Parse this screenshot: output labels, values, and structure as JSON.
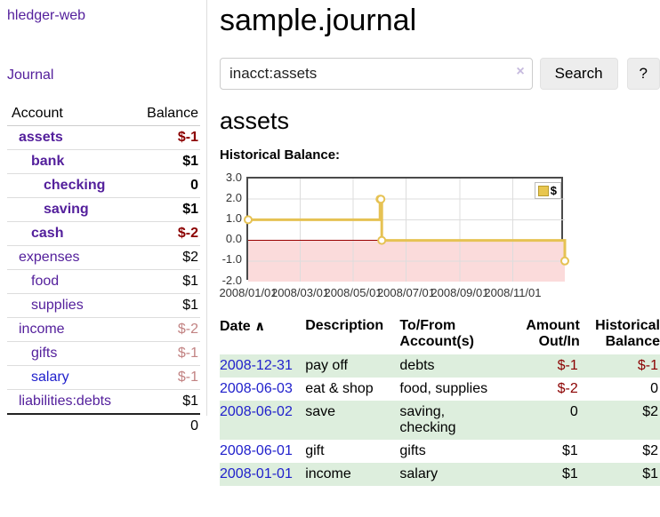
{
  "app": {
    "brand": "hledger-web",
    "nav_journal": "Journal"
  },
  "sidebar": {
    "accounts_table": {
      "headers": {
        "account": "Account",
        "balance": "Balance"
      },
      "rows": [
        {
          "name": "assets",
          "indent": 1,
          "bold": true,
          "balance": "$-1",
          "negative": "strong",
          "link_color": "purple"
        },
        {
          "name": "bank",
          "indent": 2,
          "bold": true,
          "balance": "$1",
          "negative": "none",
          "link_color": "purple"
        },
        {
          "name": "checking",
          "indent": 3,
          "bold": true,
          "balance": "0",
          "negative": "none",
          "link_color": "purple"
        },
        {
          "name": "saving",
          "indent": 3,
          "bold": true,
          "balance": "$1",
          "negative": "none",
          "link_color": "purple"
        },
        {
          "name": "cash",
          "indent": 2,
          "bold": true,
          "balance": "$-2",
          "negative": "strong",
          "link_color": "purple"
        },
        {
          "name": "expenses",
          "indent": 1,
          "bold": false,
          "balance": "$2",
          "negative": "none",
          "link_color": "purple"
        },
        {
          "name": "food",
          "indent": 2,
          "bold": false,
          "balance": "$1",
          "negative": "none",
          "link_color": "purple"
        },
        {
          "name": "supplies",
          "indent": 2,
          "bold": false,
          "balance": "$1",
          "negative": "none",
          "link_color": "purple"
        },
        {
          "name": "income",
          "indent": 1,
          "bold": false,
          "balance": "$-2",
          "negative": "pale",
          "link_color": "purple"
        },
        {
          "name": "gifts",
          "indent": 2,
          "bold": false,
          "balance": "$-1",
          "negative": "pale",
          "link_color": "purple"
        },
        {
          "name": "salary",
          "indent": 2,
          "bold": false,
          "balance": "$-1",
          "negative": "pale",
          "link_color": "blue"
        },
        {
          "name": "liabilities:debts",
          "indent": 1,
          "bold": false,
          "balance": "$1",
          "negative": "none",
          "link_color": "purple"
        }
      ],
      "total": "0"
    }
  },
  "main": {
    "title": "sample.journal",
    "search": {
      "value": "inacct:assets",
      "clear_icon": "×",
      "button_label": "Search",
      "help_label": "?"
    },
    "account_heading": "assets",
    "chart_label": "Historical Balance:"
  },
  "chart_data": {
    "type": "line",
    "step": true,
    "title": "Historical Balance",
    "legend": "$",
    "legend_position": "top-right",
    "x_range": [
      "2008-01-01",
      "2008-12-31"
    ],
    "ylim": [
      -2,
      3
    ],
    "yticks": [
      3.0,
      2.0,
      1.0,
      0.0,
      -1.0,
      -2.0
    ],
    "xticks": [
      {
        "date": "2008-01-01",
        "label": "2008/01/01"
      },
      {
        "date": "2008-03-01",
        "label": "2008/03/01"
      },
      {
        "date": "2008-05-01",
        "label": "2008/05/01"
      },
      {
        "date": "2008-07-01",
        "label": "2008/07/01"
      },
      {
        "date": "2008-09-01",
        "label": "2008/09/01"
      },
      {
        "date": "2008-11-01",
        "label": "2008/11/01"
      }
    ],
    "grid": true,
    "series": [
      {
        "name": "$",
        "points": [
          {
            "x": "2008-01-01",
            "y": 1
          },
          {
            "x": "2008-06-01",
            "y": 2
          },
          {
            "x": "2008-06-02",
            "y": 2
          },
          {
            "x": "2008-06-03",
            "y": 0
          },
          {
            "x": "2008-12-31",
            "y": -1
          }
        ]
      }
    ],
    "colors": {
      "line": "#e6c253",
      "marker_fill": "#ffffff",
      "negative_region_fill": "#fbdbdb",
      "zero_line": "#990000",
      "grid": "#dddddd",
      "border": "#4a4a4a",
      "legend_fill": "#e8c64f",
      "legend_border": "#b89b2e"
    }
  },
  "register_table": {
    "headers": {
      "date": "Date",
      "sort_icon": "∧",
      "description": "Description",
      "tofrom": "To/From Account(s)",
      "amount": "Amount Out/In",
      "historical": "Historical Balance"
    },
    "rows": [
      {
        "date": "2008-12-31",
        "description": "pay off",
        "accounts": "debts",
        "amount": "$-1",
        "amount_neg": true,
        "balance": "$-1",
        "balance_neg": true
      },
      {
        "date": "2008-06-03",
        "description": "eat & shop",
        "accounts": "food, supplies",
        "amount": "$-2",
        "amount_neg": true,
        "balance": "0",
        "balance_neg": false
      },
      {
        "date": "2008-06-02",
        "description": "save",
        "accounts": "saving, checking",
        "amount": "0",
        "amount_neg": false,
        "balance": "$2",
        "balance_neg": false
      },
      {
        "date": "2008-06-01",
        "description": "gift",
        "accounts": "gifts",
        "amount": "$1",
        "amount_neg": false,
        "balance": "$2",
        "balance_neg": false
      },
      {
        "date": "2008-01-01",
        "description": "income",
        "accounts": "salary",
        "amount": "$1",
        "amount_neg": false,
        "balance": "$1",
        "balance_neg": false
      }
    ]
  }
}
